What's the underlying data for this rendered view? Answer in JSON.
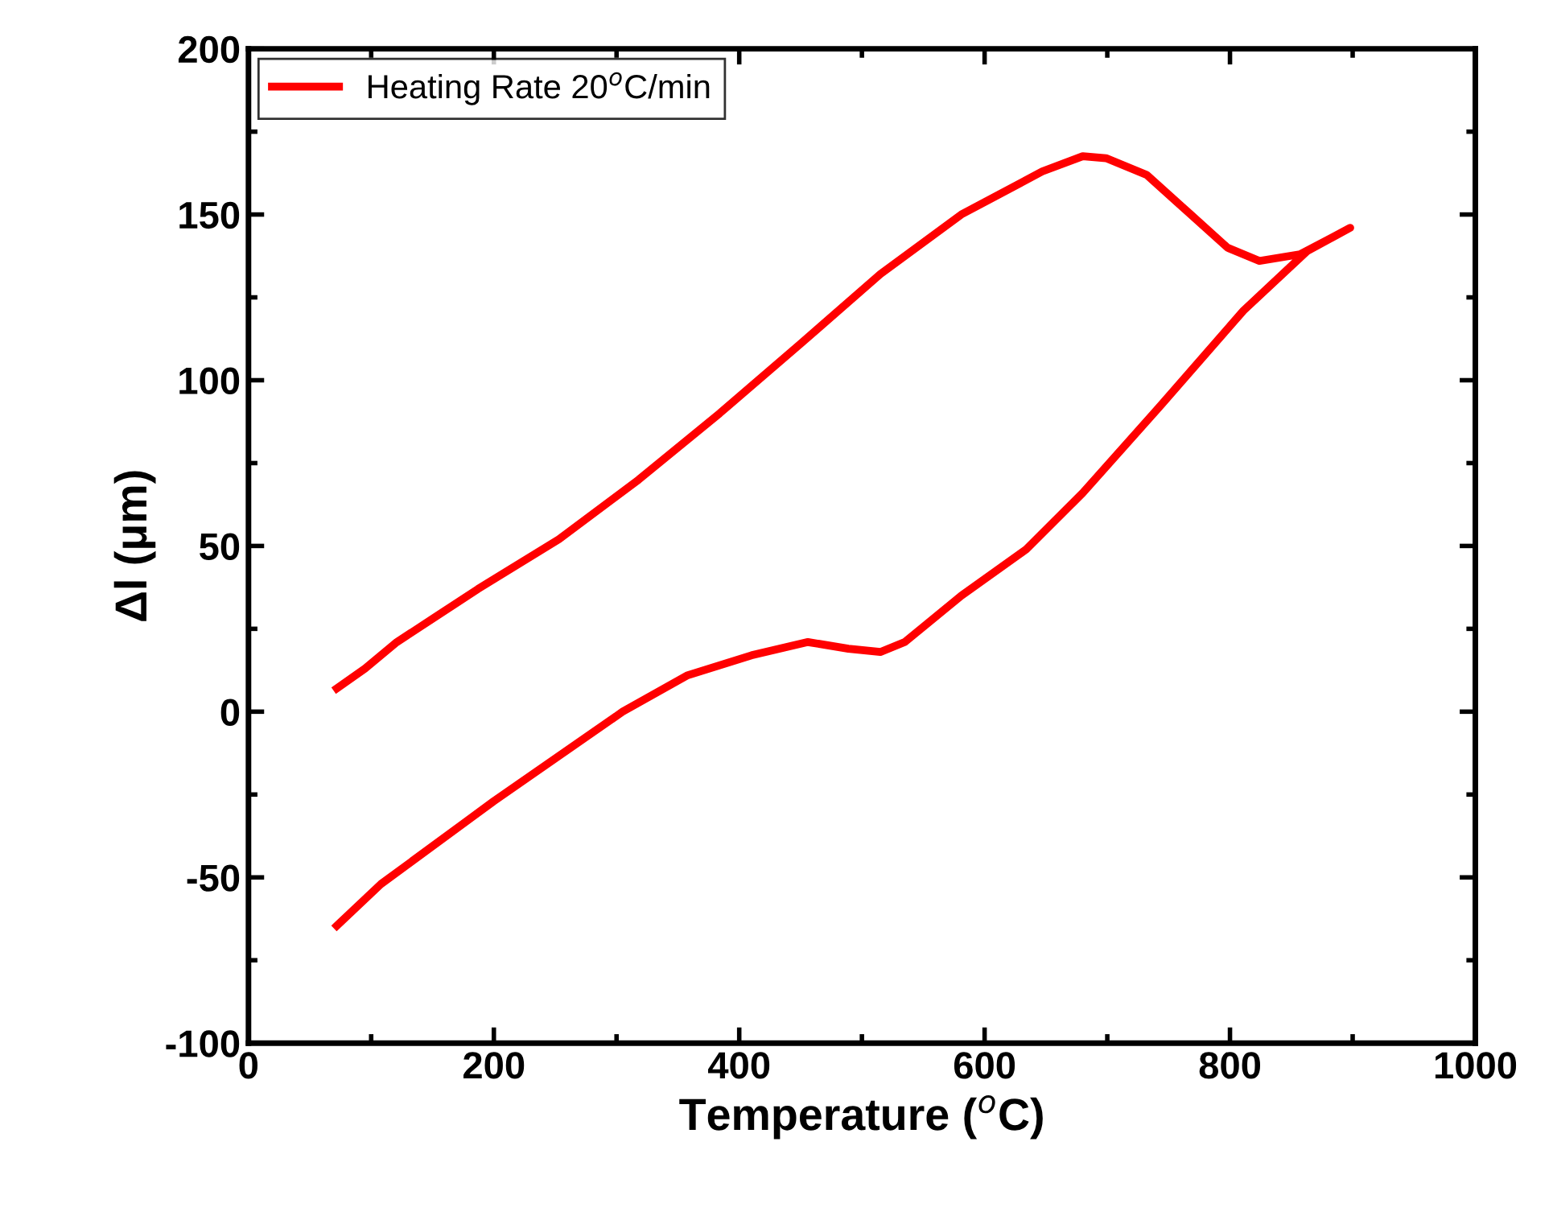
{
  "chart_data": {
    "type": "line",
    "xlabel": "Temperature ($^{o}$C)",
    "ylabel": "Δl (μm)",
    "xlim": [
      0,
      1000
    ],
    "xticks": [
      0,
      200,
      400,
      600,
      800,
      1000
    ],
    "ylim": [
      -100,
      200
    ],
    "yticks": [
      -100,
      -50,
      0,
      50,
      100,
      150,
      200
    ],
    "grid": false,
    "legend": "top left",
    "marker": "none",
    "line_style": "solid",
    "series": [
      {
        "name": "Heating Rate 20$^{o}$C/min",
        "color": "#ff0000",
        "x": [
          72,
          108,
          200,
          305,
          358,
          410,
          456,
          489,
          515,
          535,
          581,
          634,
          680,
          745,
          811,
          863,
          898,
          883,
          857,
          824,
          798,
          765,
          732,
          699,
          680,
          647,
          581,
          515,
          450,
          384,
          318,
          253,
          187,
          121,
          95,
          72
        ],
        "values": [
          -64.6,
          -52,
          -27,
          0,
          11,
          17,
          21,
          19,
          18,
          21,
          35,
          49,
          66,
          93,
          121,
          139,
          146,
          143,
          138,
          136,
          140,
          151,
          162,
          167,
          167.6,
          163,
          150,
          132,
          111,
          90,
          70,
          52,
          37,
          21,
          13,
          7
        ]
      }
    ]
  }
}
